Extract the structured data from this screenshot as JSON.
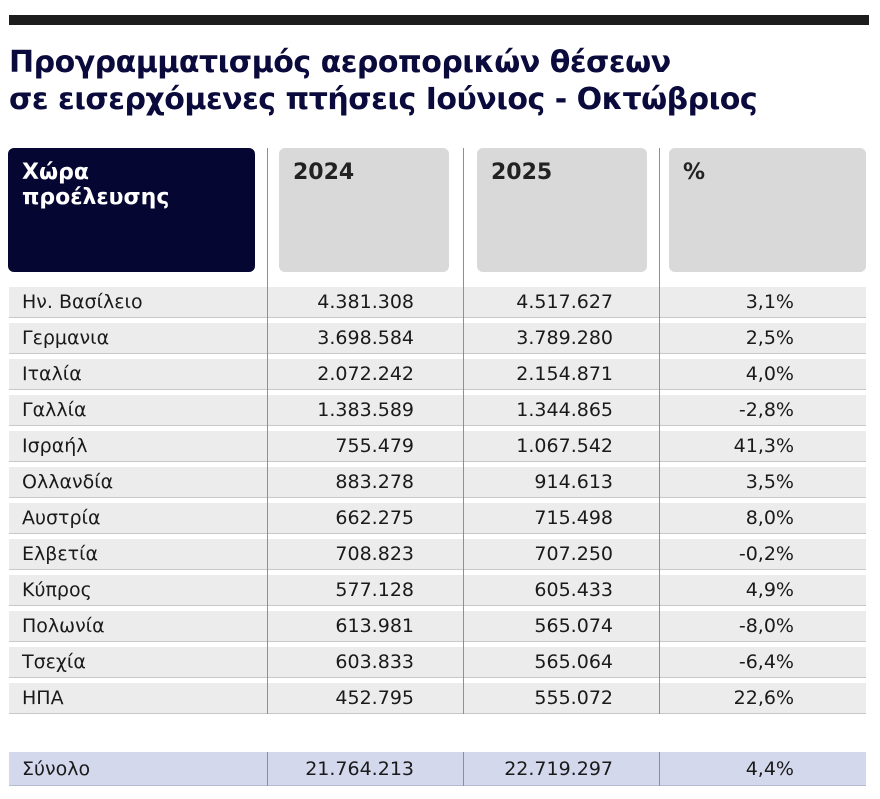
{
  "title_line1": "Προγραμματισμός αεροπορικών θέσεων",
  "title_line2": "σε εισερχόμενες πτήσεις Ιούνιος - Οκτώβριος",
  "columns": {
    "country": "Χώρα προέλευσης",
    "y2024": "2024",
    "y2025": "2025",
    "pct": "%"
  },
  "chart_data": {
    "type": "table",
    "title": "Προγραμματισμός αεροπορικών θέσεων σε εισερχόμενες πτήσεις Ιούνιος - Οκτώβριος",
    "headers": [
      "Χώρα προέλευσης",
      "2024",
      "2025",
      "%"
    ],
    "rows": [
      {
        "country": "Ην. Βασίλειο",
        "y2024": "4.381.308",
        "y2025": "4.517.627",
        "pct": "3,1%"
      },
      {
        "country": "Γερμανια",
        "y2024": "3.698.584",
        "y2025": "3.789.280",
        "pct": "2,5%"
      },
      {
        "country": "Ιταλία",
        "y2024": "2.072.242",
        "y2025": "2.154.871",
        "pct": "4,0%"
      },
      {
        "country": "Γαλλία",
        "y2024": "1.383.589",
        "y2025": "1.344.865",
        "pct": "-2,8%"
      },
      {
        "country": "Ισραήλ",
        "y2024": "755.479",
        "y2025": "1.067.542",
        "pct": "41,3%"
      },
      {
        "country": "Ολλανδία",
        "y2024": "883.278",
        "y2025": "914.613",
        "pct": "3,5%"
      },
      {
        "country": "Αυστρία",
        "y2024": "662.275",
        "y2025": "715.498",
        "pct": "8,0%"
      },
      {
        "country": "Ελβετία",
        "y2024": "708.823",
        "y2025": "707.250",
        "pct": "-0,2%"
      },
      {
        "country": "Κύπρος",
        "y2024": "577.128",
        "y2025": "605.433",
        "pct": "4,9%"
      },
      {
        "country": "Πολωνία",
        "y2024": "613.981",
        "y2025": "565.074",
        "pct": "-8,0%"
      },
      {
        "country": "Τσεχία",
        "y2024": "603.833",
        "y2025": "565.064",
        "pct": "-6,4%"
      },
      {
        "country": "ΗΠΑ",
        "y2024": "452.795",
        "y2025": "555.072",
        "pct": "22,6%"
      }
    ],
    "total": {
      "country": "Σύνολο",
      "y2024": "21.764.213",
      "y2025": "22.719.297",
      "pct": "4,4%"
    }
  },
  "colors": {
    "header_dark": "#060633",
    "header_light": "#d9d9d9",
    "row_bg": "#ececec",
    "total_bg": "#d3d8ec",
    "title": "#0a0a3c"
  }
}
